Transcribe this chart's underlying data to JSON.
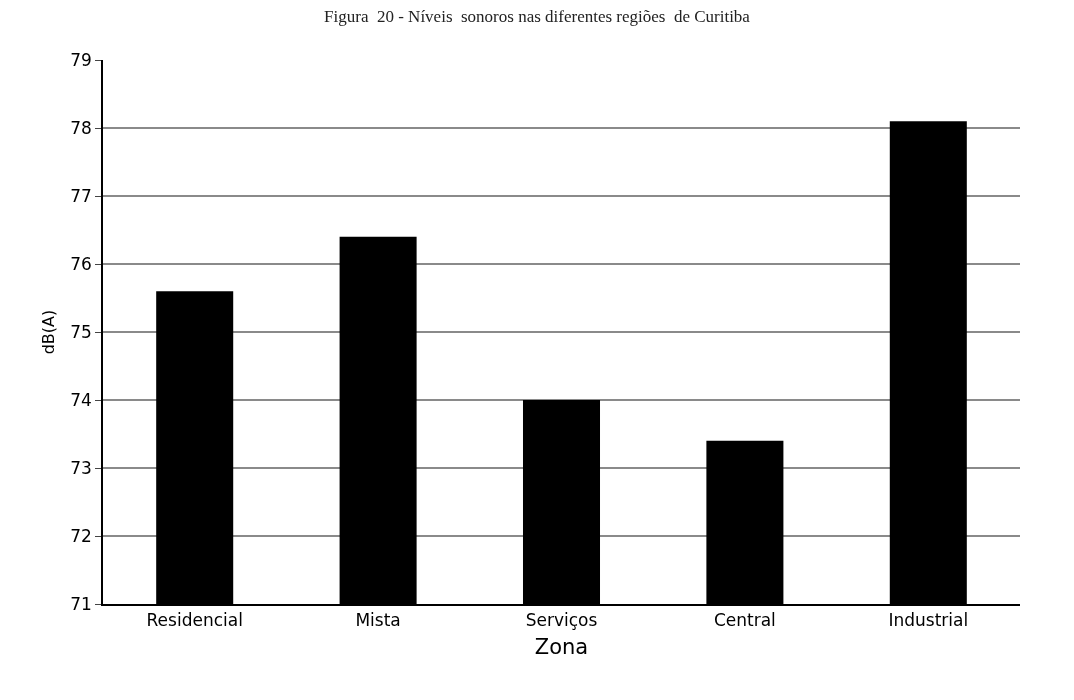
{
  "chart_data": {
    "type": "bar",
    "title": "Figura  20 - Níveis  sonoros nas diferentes regiões  de Curitiba",
    "xlabel": "Zona",
    "ylabel": "dB(A)",
    "categories": [
      "Residencial",
      "Mista",
      "Serviços",
      "Central",
      "Industrial"
    ],
    "values": [
      75.6,
      76.4,
      74.0,
      73.4,
      78.1
    ],
    "color": "#000000",
    "ylim": [
      71,
      79
    ],
    "yticks": [
      71,
      72,
      73,
      74,
      75,
      76,
      77,
      78,
      79
    ],
    "grid": "y"
  }
}
